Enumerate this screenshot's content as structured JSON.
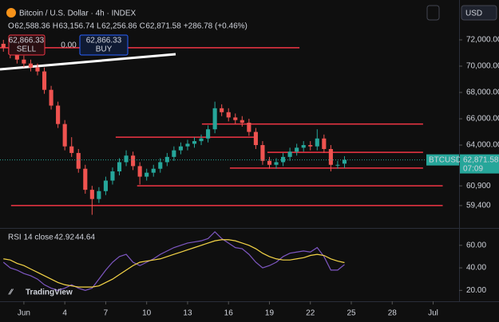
{
  "header": {
    "symbol": "Bitcoin / U.S. Dollar · 4h · INDEX",
    "ohlc": [
      "O",
      "62,588.36",
      "H",
      "63,156.74",
      "L",
      "62,256.86",
      "C",
      "62,871.58",
      "+286.78 (+0.46%)"
    ],
    "sell_price": "62,866.33",
    "sell": "SELL",
    "spread": "0.00",
    "buy_price": "62,866.33",
    "buy": "BUY",
    "currency": "USD",
    "logo": "TradingView",
    "price_tag": {
      "symbol": "BTCUSD",
      "price": "62,871.58",
      "countdown": "07:09"
    },
    "rsi_legend": {
      "name": "RSI 14 close",
      "rsi": "42.92",
      "ma": "44.64"
    }
  },
  "chart_data": [
    {
      "type": "candlestick",
      "up_color": "#26a69a",
      "down_color": "#ef5350",
      "level_color": "#f23645",
      "ylim": [
        57760,
        75030
      ],
      "xlim": [
        -0.75,
        32.9
      ],
      "yticks": [
        {
          "value": 72000,
          "label": "72,000.00"
        },
        {
          "value": 70000,
          "label": "70,000.00"
        },
        {
          "value": 68000,
          "label": "68,000.00"
        },
        {
          "value": 66000,
          "label": "66,000.00"
        },
        {
          "value": 64000,
          "label": "64,000.00"
        },
        {
          "value": 60900,
          "label": "60,900"
        },
        {
          "value": 59400,
          "label": "59,400"
        }
      ],
      "last_price": 62871.58,
      "x": [
        -0.5,
        0,
        0.5,
        1,
        1.5,
        2,
        2.5,
        3,
        3.5,
        4,
        4.5,
        5,
        5.5,
        6,
        6.5,
        7,
        7.5,
        8,
        8.5,
        9,
        9.5,
        10,
        10.5,
        11,
        11.5,
        12,
        12.5,
        13,
        13.5,
        14,
        14.5,
        15,
        15.5,
        16,
        16.5,
        17,
        17.5,
        18,
        18.5,
        19,
        19.5,
        20,
        20.5,
        21,
        21.5,
        22,
        22.5,
        23,
        23.5,
        24,
        24.5
      ],
      "open": [
        71700,
        71400,
        70900,
        70500,
        70200,
        69900,
        69600,
        68200,
        67000,
        65600,
        63900,
        63400,
        62200,
        60600,
        59900,
        60500,
        61300,
        62000,
        62700,
        63200,
        62400,
        61600,
        61900,
        62200,
        62700,
        63100,
        63600,
        63900,
        64100,
        64300,
        64500,
        65200,
        66800,
        66500,
        66100,
        65900,
        65700,
        65000,
        64000,
        62800,
        62500,
        62700,
        63100,
        63500,
        63800,
        64000,
        63900,
        64500,
        63700,
        62500,
        62588.36
      ],
      "high": [
        72000,
        71700,
        71200,
        70800,
        70500,
        70200,
        69900,
        68500,
        67300,
        65900,
        64600,
        63700,
        62500,
        60900,
        60800,
        61600,
        62300,
        63000,
        63600,
        63500,
        62700,
        62200,
        62500,
        63000,
        63400,
        63900,
        64200,
        64400,
        64600,
        64800,
        65500,
        67300,
        67100,
        66800,
        66400,
        66200,
        66000,
        65300,
        64300,
        63100,
        63000,
        63400,
        63800,
        64100,
        64300,
        64300,
        65200,
        64800,
        64000,
        62800,
        63156.74
      ],
      "low": [
        71100,
        70600,
        70200,
        69900,
        69600,
        69300,
        67900,
        66700,
        65300,
        63600,
        63100,
        61900,
        60300,
        58700,
        59600,
        60200,
        61000,
        61700,
        62400,
        62100,
        61000,
        61300,
        61600,
        61900,
        62400,
        62800,
        63300,
        63600,
        63800,
        64000,
        64200,
        64900,
        66200,
        65800,
        65600,
        65400,
        64700,
        63700,
        62500,
        62200,
        62200,
        62400,
        62800,
        63200,
        63500,
        63600,
        63600,
        63400,
        62000,
        62200,
        62256.86
      ],
      "close": [
        71400,
        70900,
        70500,
        70200,
        69900,
        69600,
        68200,
        67000,
        65600,
        63900,
        63400,
        62200,
        60600,
        59900,
        60500,
        61300,
        62000,
        62700,
        63200,
        62400,
        61600,
        61900,
        62200,
        62700,
        63100,
        63600,
        63900,
        64100,
        64300,
        64500,
        65200,
        66800,
        66500,
        66100,
        65900,
        65700,
        65000,
        64000,
        62800,
        62500,
        62700,
        63100,
        63500,
        63800,
        64000,
        63900,
        64500,
        63700,
        62500,
        62500,
        62871.58
      ],
      "levels": [
        {
          "value": 71400,
          "x": [
            -0.75,
            21.2
          ]
        },
        {
          "value": 65600,
          "x": [
            14.05,
            30.26
          ]
        },
        {
          "value": 64600,
          "x": [
            7.73,
            17.97
          ]
        },
        {
          "value": 63450,
          "x": [
            18.85,
            30.26
          ]
        },
        {
          "value": 62250,
          "x": [
            16.1,
            30.26
          ]
        },
        {
          "value": 60900,
          "x": [
            9.3,
            31.7
          ]
        },
        {
          "value": 59400,
          "x": [
            0.06,
            31.7
          ]
        }
      ]
    },
    {
      "type": "line",
      "ylim": [
        16,
        74
      ],
      "xlim": [
        -0.75,
        32.9
      ],
      "yticks": [
        {
          "value": 60,
          "label": "60.00"
        },
        {
          "value": 40,
          "label": "40.00"
        },
        {
          "value": 20,
          "label": "20.00"
        }
      ],
      "xticks": [
        {
          "value": 1,
          "label": "Jun"
        },
        4,
        7,
        10,
        13,
        16,
        19,
        22,
        25,
        28,
        {
          "value": 31,
          "label": "Jul"
        }
      ],
      "x": [
        -0.5,
        0,
        0.5,
        1,
        1.5,
        2,
        2.5,
        3,
        3.5,
        4,
        4.5,
        5,
        5.5,
        6,
        6.5,
        7,
        7.5,
        8,
        8.5,
        9,
        9.5,
        10,
        10.5,
        11,
        11.5,
        12,
        12.5,
        13,
        13.5,
        14,
        14.5,
        15,
        15.5,
        16,
        16.5,
        17,
        17.5,
        18,
        18.5,
        19,
        19.5,
        20,
        20.5,
        21,
        21.5,
        22,
        22.5,
        23,
        23.5,
        24,
        24.5
      ],
      "series": [
        {
          "color": "#7e57c2",
          "values": [
            45,
            40,
            38,
            35,
            33,
            30,
            25,
            22,
            20,
            22,
            25,
            22,
            20,
            22,
            30,
            38,
            45,
            50,
            52,
            45,
            42,
            45,
            48,
            52,
            55,
            58,
            60,
            62,
            63,
            64,
            66,
            72,
            66,
            62,
            58,
            57,
            52,
            45,
            40,
            42,
            45,
            50,
            53,
            54,
            55,
            54,
            58,
            50,
            38,
            38,
            42.92
          ]
        },
        {
          "color": "#f5d547",
          "values": [
            48,
            47,
            44,
            42,
            39,
            36,
            33,
            30,
            27,
            25,
            24,
            23,
            23,
            23,
            24,
            27,
            30,
            34,
            38,
            42,
            45,
            46,
            47,
            48,
            50,
            52,
            54,
            56,
            58,
            60,
            62,
            64,
            65,
            65,
            64,
            62,
            60,
            57,
            53,
            50,
            48,
            47,
            47,
            48,
            49,
            51,
            52,
            51,
            48,
            46,
            44.64
          ]
        }
      ]
    }
  ]
}
